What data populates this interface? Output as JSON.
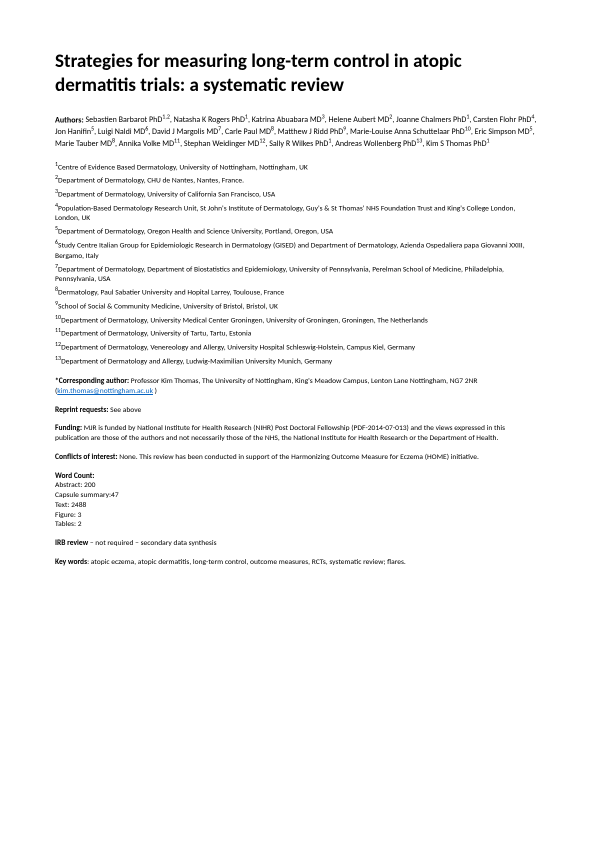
{
  "title": "Strategies for measuring long-term control in atopic dermatitis trials: a systematic review",
  "authorsLabel": "Authors:",
  "authors": "Sebastien Barbarot PhD1,2, Natasha K Rogers PhD1, Katrina Abuabara MD3, Helene Aubert MD2, Joanne Chalmers PhD1, Carsten Flohr PhD4, Jon Hanifin5, Luigi Naldi MD6, David J Margolis MD7, Carle Paul MD8, Matthew J Ridd PhD9, Marie-Louise Anna Schuttelaar PhD10, Eric Simpson MD5, Marie Tauber MD8, Annika Volke MD11, Stephan Weidinger MD12, Sally R Wilkes PhD1, Andreas Wollenberg PhD13, Kim S Thomas PhD1",
  "affiliations": [
    "1Centre of Evidence Based Dermatology, University of Nottingham, Nottingham, UK",
    "2Department of Dermatology, CHU de Nantes, Nantes, France.",
    "3 Department of Dermatology, University of California San Francisco, USA",
    "4Population-Based Dermatology Research Unit, St John's Institute of Dermatology, Guy's & St Thomas' NHS Foundation Trust and King's College London, London, UK",
    "5 Department of Dermatology, Oregon Health and Science University, Portland, Oregon, USA",
    "6 Study Centre Italian Group for Epidemiologic Research in Dermatology (GISED) and Department of Dermatology, Azienda Ospedaliera papa Giovanni XXIII, Bergamo, Italy",
    "7Department of Dermatology, Department of Biostatistics and Epidemiology, University of Pennsylvania, Perelman School of Medicine, Philadelphia, Pennsylvania, USA",
    "8 Dermatology, Paul Sabatier University and Hopital Larrey, Toulouse, France",
    "9School of Social & Community Medicine, University of Bristol, Bristol, UK",
    "10 Department of Dermatology, University Medical Center Groningen, University of Groningen, Groningen, The Netherlands",
    "11 Department of Dermatology, University of Tartu, Tartu, Estonia",
    "12 Department of Dermatology, Venereology and Allergy, University Hospital Schleswig-Holstein, Campus Kiel, Germany",
    "13 Department of Dermatology and Allergy, Ludwig-Maximilian University Munich, Germany"
  ],
  "corresponding": {
    "label": "*Corresponding author:",
    "text": " Professor Kim Thomas, The University of Nottingham, King's Meadow Campus, Lenton Lane Nottingham, NG7 2NR (",
    "email": "kim.thomas@nottingham.ac.uk",
    "close": " )"
  },
  "reprint": {
    "label": "Reprint requests:",
    "text": " See above"
  },
  "funding": {
    "label": "Funding:",
    "text": " MJR is funded by National Institute for Health Research (NIHR) Post Doctoral Fellowship (PDF-2014-07-013) and the views expressed in this publication are those of the authors and not necessarily those of the NHS, the National Institute for Health Research or the Department of Health."
  },
  "conflicts": {
    "label": "Conflicts of interest:",
    "text": " None. This review has been conducted in support of the Harmonizing Outcome Measure for Eczema (HOME) initiative."
  },
  "wordcount": {
    "label": "Word Count:",
    "lines": [
      "Abstract: 200",
      "Capsule summary:47",
      "Text: 2488",
      "Figure: 3",
      "Tables: 2"
    ]
  },
  "irb": {
    "label": "IRB review",
    "text": " – not required – secondary data synthesis"
  },
  "keywords": {
    "label": "Key words",
    "text": ": atopic eczema, atopic dermatitis, long-term control, outcome measures, RCTs, systematic review; flares."
  }
}
